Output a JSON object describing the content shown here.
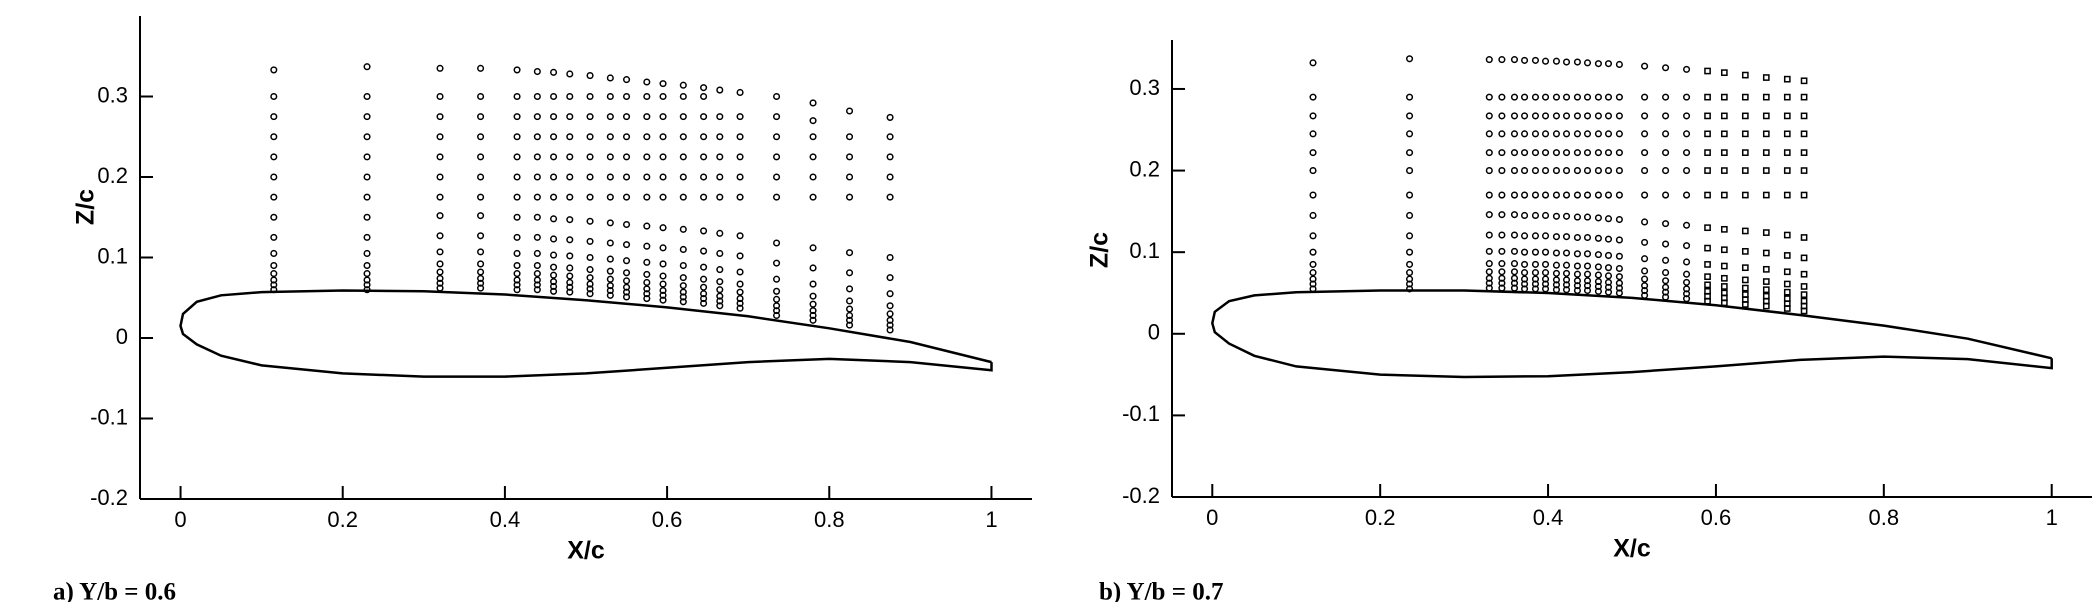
{
  "chart_data": [
    {
      "type": "scatter",
      "xlabel": "X/c",
      "ylabel": "Z/c",
      "caption": "a) Y/b = 0.6",
      "xlim": [
        -0.05,
        1.05
      ],
      "ylim": [
        -0.2,
        0.4
      ],
      "xticks": [
        0,
        0.2,
        0.4,
        0.6,
        0.8,
        1
      ],
      "yticks": [
        -0.2,
        -0.1,
        0,
        0.1,
        0.2,
        0.3
      ],
      "color": "#000000",
      "outline": {
        "x": [
          1,
          0.9,
          0.8,
          0.7,
          0.6,
          0.5,
          0.4,
          0.3,
          0.2,
          0.1,
          0.05,
          0.02,
          0.003,
          0,
          0.003,
          0.02,
          0.05,
          0.1,
          0.2,
          0.3,
          0.4,
          0.5,
          0.6,
          0.7,
          0.8,
          0.9,
          1,
          1
        ],
        "y": [
          -0.03,
          -0.005,
          0.012,
          0.027,
          0.038,
          0.047,
          0.054,
          0.058,
          0.059,
          0.057,
          0.053,
          0.045,
          0.03,
          0.015,
          0.005,
          -0.008,
          -0.022,
          -0.034,
          -0.044,
          -0.048,
          -0.048,
          -0.044,
          -0.037,
          -0.03,
          -0.026,
          -0.03,
          -0.04,
          -0.03
        ]
      },
      "stations": [
        {
          "x": 0.115,
          "z": [
            0.06,
            0.066,
            0.072,
            0.08,
            0.09,
            0.105,
            0.125,
            0.15,
            0.175,
            0.2,
            0.225,
            0.25,
            0.275,
            0.3,
            0.333
          ]
        },
        {
          "x": 0.23,
          "z": [
            0.06,
            0.066,
            0.072,
            0.08,
            0.09,
            0.105,
            0.125,
            0.15,
            0.175,
            0.2,
            0.225,
            0.25,
            0.275,
            0.3,
            0.337
          ]
        },
        {
          "x": 0.32,
          "z": [
            0.062,
            0.068,
            0.074,
            0.082,
            0.092,
            0.107,
            0.127,
            0.152,
            0.175,
            0.2,
            0.225,
            0.25,
            0.275,
            0.3,
            0.335
          ]
        },
        {
          "x": 0.37,
          "z": [
            0.062,
            0.068,
            0.074,
            0.082,
            0.092,
            0.107,
            0.127,
            0.152,
            0.175,
            0.2,
            0.225,
            0.25,
            0.275,
            0.3,
            0.335
          ]
        },
        {
          "x": 0.415,
          "z": [
            0.06,
            0.066,
            0.072,
            0.08,
            0.09,
            0.105,
            0.125,
            0.15,
            0.175,
            0.2,
            0.225,
            0.25,
            0.275,
            0.3,
            0.333
          ]
        },
        {
          "x": 0.44,
          "z": [
            0.06,
            0.066,
            0.072,
            0.08,
            0.09,
            0.105,
            0.125,
            0.15,
            0.175,
            0.2,
            0.225,
            0.25,
            0.275,
            0.3,
            0.331
          ]
        },
        {
          "x": 0.46,
          "z": [
            0.058,
            0.064,
            0.07,
            0.078,
            0.088,
            0.103,
            0.123,
            0.148,
            0.175,
            0.2,
            0.225,
            0.25,
            0.275,
            0.3,
            0.33
          ]
        },
        {
          "x": 0.48,
          "z": [
            0.057,
            0.063,
            0.069,
            0.077,
            0.087,
            0.102,
            0.122,
            0.147,
            0.175,
            0.2,
            0.225,
            0.25,
            0.275,
            0.3,
            0.328
          ]
        },
        {
          "x": 0.505,
          "z": [
            0.055,
            0.061,
            0.067,
            0.075,
            0.085,
            0.1,
            0.12,
            0.145,
            0.175,
            0.2,
            0.225,
            0.25,
            0.275,
            0.3,
            0.326
          ]
        },
        {
          "x": 0.53,
          "z": [
            0.053,
            0.059,
            0.065,
            0.073,
            0.083,
            0.098,
            0.118,
            0.143,
            0.175,
            0.2,
            0.225,
            0.25,
            0.275,
            0.3,
            0.323
          ]
        },
        {
          "x": 0.55,
          "z": [
            0.051,
            0.057,
            0.063,
            0.071,
            0.081,
            0.096,
            0.116,
            0.141,
            0.175,
            0.2,
            0.225,
            0.25,
            0.275,
            0.3,
            0.321
          ]
        },
        {
          "x": 0.575,
          "z": [
            0.049,
            0.055,
            0.061,
            0.069,
            0.079,
            0.094,
            0.114,
            0.139,
            0.175,
            0.2,
            0.225,
            0.25,
            0.275,
            0.3,
            0.318
          ]
        },
        {
          "x": 0.595,
          "z": [
            0.047,
            0.053,
            0.059,
            0.067,
            0.077,
            0.092,
            0.112,
            0.137,
            0.175,
            0.2,
            0.225,
            0.25,
            0.275,
            0.3,
            0.316
          ]
        },
        {
          "x": 0.62,
          "z": [
            0.045,
            0.051,
            0.057,
            0.065,
            0.075,
            0.09,
            0.11,
            0.135,
            0.175,
            0.2,
            0.225,
            0.25,
            0.275,
            0.3,
            0.314
          ]
        },
        {
          "x": 0.645,
          "z": [
            0.043,
            0.049,
            0.055,
            0.063,
            0.073,
            0.088,
            0.108,
            0.133,
            0.175,
            0.2,
            0.225,
            0.25,
            0.275,
            0.3,
            0.311
          ]
        },
        {
          "x": 0.665,
          "z": [
            0.04,
            0.046,
            0.052,
            0.06,
            0.07,
            0.085,
            0.105,
            0.13,
            0.175,
            0.2,
            0.225,
            0.25,
            0.275,
            0.308
          ]
        },
        {
          "x": 0.69,
          "z": [
            0.037,
            0.043,
            0.049,
            0.057,
            0.067,
            0.082,
            0.102,
            0.127,
            0.175,
            0.2,
            0.225,
            0.25,
            0.275,
            0.305
          ]
        },
        {
          "x": 0.735,
          "z": [
            0.028,
            0.034,
            0.04,
            0.048,
            0.058,
            0.073,
            0.093,
            0.118,
            0.175,
            0.2,
            0.225,
            0.25,
            0.275,
            0.3
          ]
        },
        {
          "x": 0.78,
          "z": [
            0.022,
            0.028,
            0.034,
            0.042,
            0.052,
            0.067,
            0.087,
            0.112,
            0.175,
            0.2,
            0.225,
            0.25,
            0.27,
            0.292
          ]
        },
        {
          "x": 0.825,
          "z": [
            0.016,
            0.022,
            0.028,
            0.036,
            0.046,
            0.061,
            0.081,
            0.106,
            0.175,
            0.2,
            0.225,
            0.25,
            0.282
          ]
        },
        {
          "x": 0.875,
          "z": [
            0.01,
            0.016,
            0.022,
            0.03,
            0.04,
            0.055,
            0.075,
            0.1,
            0.175,
            0.2,
            0.225,
            0.25,
            0.274
          ]
        }
      ]
    },
    {
      "type": "scatter",
      "xlabel": "X/c",
      "ylabel": "Z/c",
      "caption": "b) Y/b = 0.7",
      "xlim": [
        -0.048,
        1.048
      ],
      "ylim": [
        -0.2,
        0.36
      ],
      "xticks": [
        0,
        0.2,
        0.4,
        0.6,
        0.8,
        1
      ],
      "yticks": [
        -0.2,
        -0.1,
        0,
        0.1,
        0.2,
        0.3
      ],
      "color": "#000000",
      "outline": {
        "x": [
          1,
          0.9,
          0.8,
          0.7,
          0.6,
          0.5,
          0.4,
          0.3,
          0.2,
          0.1,
          0.05,
          0.02,
          0.003,
          0,
          0.003,
          0.02,
          0.05,
          0.1,
          0.2,
          0.3,
          0.4,
          0.5,
          0.6,
          0.7,
          0.8,
          0.9,
          1,
          1
        ],
        "y": [
          -0.03,
          -0.006,
          0.01,
          0.023,
          0.035,
          0.044,
          0.05,
          0.053,
          0.053,
          0.051,
          0.047,
          0.04,
          0.027,
          0.013,
          0.002,
          -0.012,
          -0.027,
          -0.04,
          -0.05,
          -0.053,
          -0.052,
          -0.047,
          -0.04,
          -0.032,
          -0.028,
          -0.031,
          -0.042,
          -0.03
        ]
      },
      "stations": [
        {
          "x": 0.12,
          "z": [
            0.055,
            0.061,
            0.067,
            0.075,
            0.085,
            0.1,
            0.12,
            0.145,
            0.17,
            0.2,
            0.222,
            0.245,
            0.267,
            0.29,
            0.332
          ]
        },
        {
          "x": 0.235,
          "z": [
            0.055,
            0.061,
            0.067,
            0.075,
            0.085,
            0.1,
            0.12,
            0.145,
            0.17,
            0.2,
            0.222,
            0.245,
            0.267,
            0.29,
            0.337
          ]
        },
        {
          "x": 0.33,
          "z": [
            0.056,
            0.062,
            0.068,
            0.076,
            0.086,
            0.101,
            0.121,
            0.146,
            0.17,
            0.2,
            0.222,
            0.245,
            0.267,
            0.29,
            0.336
          ]
        },
        {
          "x": 0.345,
          "z": [
            0.056,
            0.062,
            0.068,
            0.076,
            0.086,
            0.101,
            0.121,
            0.146,
            0.17,
            0.2,
            0.222,
            0.245,
            0.267,
            0.29,
            0.336
          ]
        },
        {
          "x": 0.36,
          "z": [
            0.056,
            0.062,
            0.068,
            0.076,
            0.086,
            0.101,
            0.121,
            0.146,
            0.17,
            0.2,
            0.222,
            0.245,
            0.267,
            0.29,
            0.336
          ]
        },
        {
          "x": 0.372,
          "z": [
            0.055,
            0.061,
            0.067,
            0.075,
            0.085,
            0.1,
            0.12,
            0.145,
            0.17,
            0.2,
            0.222,
            0.245,
            0.267,
            0.29,
            0.335
          ]
        },
        {
          "x": 0.385,
          "z": [
            0.055,
            0.061,
            0.067,
            0.075,
            0.085,
            0.1,
            0.12,
            0.145,
            0.17,
            0.2,
            0.222,
            0.245,
            0.267,
            0.29,
            0.335
          ]
        },
        {
          "x": 0.397,
          "z": [
            0.055,
            0.061,
            0.067,
            0.075,
            0.085,
            0.1,
            0.12,
            0.145,
            0.17,
            0.2,
            0.222,
            0.245,
            0.267,
            0.29,
            0.334
          ]
        },
        {
          "x": 0.41,
          "z": [
            0.054,
            0.06,
            0.066,
            0.074,
            0.084,
            0.099,
            0.119,
            0.144,
            0.17,
            0.2,
            0.222,
            0.245,
            0.267,
            0.29,
            0.334
          ]
        },
        {
          "x": 0.422,
          "z": [
            0.054,
            0.06,
            0.066,
            0.074,
            0.084,
            0.099,
            0.119,
            0.144,
            0.17,
            0.2,
            0.222,
            0.245,
            0.267,
            0.29,
            0.333
          ]
        },
        {
          "x": 0.435,
          "z": [
            0.053,
            0.059,
            0.065,
            0.073,
            0.083,
            0.098,
            0.118,
            0.143,
            0.17,
            0.2,
            0.222,
            0.245,
            0.267,
            0.29,
            0.333
          ]
        },
        {
          "x": 0.447,
          "z": [
            0.053,
            0.059,
            0.065,
            0.073,
            0.083,
            0.098,
            0.118,
            0.143,
            0.17,
            0.2,
            0.222,
            0.245,
            0.267,
            0.29,
            0.332
          ]
        },
        {
          "x": 0.46,
          "z": [
            0.052,
            0.058,
            0.064,
            0.072,
            0.082,
            0.097,
            0.117,
            0.142,
            0.17,
            0.2,
            0.222,
            0.245,
            0.267,
            0.29,
            0.331
          ]
        },
        {
          "x": 0.472,
          "z": [
            0.051,
            0.057,
            0.063,
            0.071,
            0.081,
            0.096,
            0.116,
            0.141,
            0.17,
            0.2,
            0.222,
            0.245,
            0.267,
            0.29,
            0.331
          ]
        },
        {
          "x": 0.485,
          "z": [
            0.05,
            0.056,
            0.062,
            0.07,
            0.08,
            0.095,
            0.115,
            0.14,
            0.17,
            0.2,
            0.222,
            0.245,
            0.267,
            0.29,
            0.33
          ]
        },
        {
          "x": 0.515,
          "z": [
            0.047,
            0.053,
            0.059,
            0.067,
            0.077,
            0.092,
            0.112,
            0.137,
            0.17,
            0.2,
            0.222,
            0.245,
            0.267,
            0.29,
            0.328
          ]
        },
        {
          "x": 0.54,
          "z": [
            0.045,
            0.051,
            0.057,
            0.065,
            0.075,
            0.09,
            0.11,
            0.135,
            0.17,
            0.2,
            0.222,
            0.245,
            0.267,
            0.29,
            0.326
          ]
        },
        {
          "x": 0.565,
          "z": [
            0.043,
            0.049,
            0.055,
            0.063,
            0.073,
            0.088,
            0.108,
            0.133,
            0.17,
            0.2,
            0.222,
            0.245,
            0.267,
            0.29,
            0.324
          ]
        },
        {
          "x": 0.59,
          "marker": "square",
          "z": [
            0.04,
            0.046,
            0.052,
            0.06,
            0.07,
            0.085,
            0.105,
            0.13,
            0.17,
            0.2,
            0.222,
            0.245,
            0.267,
            0.29,
            0.322
          ]
        },
        {
          "x": 0.61,
          "marker": "square",
          "z": [
            0.038,
            0.044,
            0.05,
            0.058,
            0.068,
            0.083,
            0.103,
            0.128,
            0.17,
            0.2,
            0.222,
            0.245,
            0.267,
            0.29,
            0.32
          ]
        },
        {
          "x": 0.635,
          "marker": "square",
          "z": [
            0.036,
            0.042,
            0.048,
            0.056,
            0.066,
            0.081,
            0.101,
            0.126,
            0.17,
            0.2,
            0.222,
            0.245,
            0.267,
            0.29,
            0.317
          ]
        },
        {
          "x": 0.66,
          "marker": "square",
          "z": [
            0.034,
            0.04,
            0.046,
            0.054,
            0.064,
            0.079,
            0.099,
            0.124,
            0.17,
            0.2,
            0.222,
            0.245,
            0.267,
            0.29,
            0.314
          ]
        },
        {
          "x": 0.685,
          "marker": "square",
          "z": [
            0.031,
            0.037,
            0.043,
            0.051,
            0.061,
            0.076,
            0.096,
            0.121,
            0.17,
            0.2,
            0.222,
            0.245,
            0.267,
            0.29,
            0.312
          ]
        },
        {
          "x": 0.705,
          "marker": "square",
          "z": [
            0.028,
            0.034,
            0.04,
            0.048,
            0.058,
            0.073,
            0.093,
            0.118,
            0.17,
            0.2,
            0.222,
            0.245,
            0.267,
            0.29,
            0.31
          ]
        }
      ]
    }
  ]
}
